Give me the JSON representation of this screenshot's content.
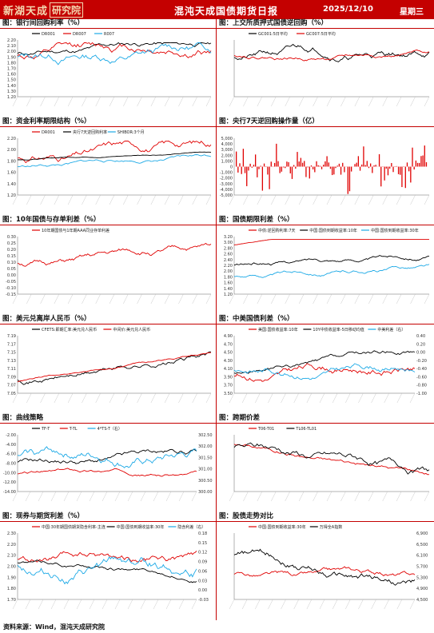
{
  "header": {
    "logo_text": "新湖天成",
    "logo_box": "研究院",
    "title": "混沌天成国债期货日报",
    "date": "2025/12/10",
    "weekday": "星期三"
  },
  "footer": {
    "source": "资料来源：Wind，混沌天成研究院"
  },
  "colors": {
    "accent": "#c40000",
    "black": "#000000",
    "red": "#e00000",
    "blue": "#1ca9e6",
    "gray": "#8a8a8a"
  },
  "panels": [
    {
      "title": "图：银行间回购利率（%）",
      "legend": [
        "DR001",
        "DR007",
        "R007"
      ],
      "colors": [
        "black",
        "red",
        "blue"
      ],
      "y": [
        "2.20",
        "2.10",
        "2.00",
        "1.90",
        "1.80",
        "1.70",
        "1.60",
        "1.50",
        "1.40",
        "1.30",
        "1.20"
      ],
      "x": []
    },
    {
      "title": "图：上交所质押式国债逆回购（%）",
      "legend": [
        "GC001:5日平均",
        "GC007:5日平均"
      ],
      "colors": [
        "black",
        "red"
      ],
      "y": [],
      "x": []
    },
    {
      "title": "图：资金利率期限结构（%）",
      "legend": [
        "DR001",
        "央行7天逆回购利率",
        "SHIBOR:3个月"
      ],
      "colors": [
        "red",
        "black",
        "blue"
      ],
      "y": [
        "2.20",
        "2.00",
        "1.80",
        "1.60",
        "1.40",
        "1.20"
      ],
      "x": []
    },
    {
      "title": "图：央行7天逆回购操作量（亿）",
      "legend": [],
      "colors": [
        "red"
      ],
      "y": [
        "5,000",
        "4,000",
        "3,000",
        "2,000",
        "1,000",
        "0",
        "-1,000",
        "-2,000",
        "-3,000",
        "-4,000",
        "-5,000"
      ],
      "x": []
    },
    {
      "title": "图：10年国债与存单利差（%）",
      "legend": [
        "10年期国债与1年期AAA同业存单利差"
      ],
      "colors": [
        "red"
      ],
      "y": [
        "0.30",
        "0.25",
        "0.20",
        "0.15",
        "0.10",
        "0.05",
        "0.00",
        "-0.05",
        "-0.10",
        "-0.15"
      ],
      "x": []
    },
    {
      "title": "图：国债期限利差（%）",
      "legend": [
        "中债:逆回购利率:7天",
        "中国:国债到期收益率:10年",
        "中国:国债到期收益率:30年"
      ],
      "colors": [
        "red",
        "black",
        "blue"
      ],
      "y": [
        "3.20",
        "3.00",
        "2.80",
        "2.60",
        "2.40",
        "2.20",
        "2.00",
        "1.80",
        "1.60",
        "1.40",
        "1.20"
      ],
      "x": []
    },
    {
      "title": "图：美元兑离岸人民币（%）",
      "legend": [
        "CFETS:即期汇率:美元兑人民币",
        "中间价:美元兑人民币"
      ],
      "colors": [
        "black",
        "red"
      ],
      "y": [
        "7.19",
        "7.17",
        "7.15",
        "7.13",
        "7.11",
        "7.09",
        "7.07",
        "7.05"
      ],
      "x": []
    },
    {
      "title": "图：中美国债利差（%）",
      "legend": [
        "美国:国债收益率:10年",
        "10Y中债收益率-5日移动均值",
        "中美利差（右）"
      ],
      "colors": [
        "red",
        "black",
        "blue"
      ],
      "y": [
        "4.90",
        "4.70",
        "4.50",
        "4.30",
        "4.10",
        "3.90",
        "3.70",
        "3.50"
      ],
      "y2": [
        "0.40",
        "0.20",
        "0.00",
        "-0.20",
        "-0.40",
        "-0.60",
        "-0.80",
        "-1.00"
      ],
      "x": []
    },
    {
      "title": "图：曲线策略",
      "legend": [
        "TF-T",
        "T-TL",
        "4*TS-T（右）"
      ],
      "colors": [
        "black",
        "red",
        "blue"
      ],
      "y": [
        "-2.00",
        "-4.00",
        "-6.00",
        "-8.00",
        "-10.00",
        "-12.00",
        "-14.00"
      ],
      "y2": [
        "302.50",
        "302.00",
        "301.50",
        "301.00",
        "300.50",
        "300.00"
      ],
      "x": []
    },
    {
      "title": "图：跨期价差",
      "legend": [
        "T06-T01",
        "TL06-TL01"
      ],
      "colors": [
        "red",
        "black"
      ],
      "y": [],
      "x": []
    },
    {
      "title": "图：现券与期货利差（%）",
      "legend": [
        "中国:30年期国债期货隐含利率-主连",
        "中国:国债到期收益率:30年",
        "隐含利差（右）"
      ],
      "colors": [
        "red",
        "black",
        "blue"
      ],
      "y": [
        "2.30",
        "2.20",
        "2.10",
        "2.00",
        "1.90",
        "1.80",
        "1.70"
      ],
      "y2": [
        "0.18",
        "0.15",
        "0.12",
        "0.09",
        "0.06",
        "0.03",
        "0.00",
        "-0.03"
      ],
      "x": []
    },
    {
      "title": "图：股债走势对比",
      "legend": [
        "中国:国债到期收益率:30年",
        "万得全A指数"
      ],
      "colors": [
        "red",
        "black"
      ],
      "y": [],
      "y2": [
        "6,900",
        "6,500",
        "6,100",
        "5,700",
        "5,300",
        "4,900",
        "4,500"
      ],
      "x": []
    }
  ]
}
